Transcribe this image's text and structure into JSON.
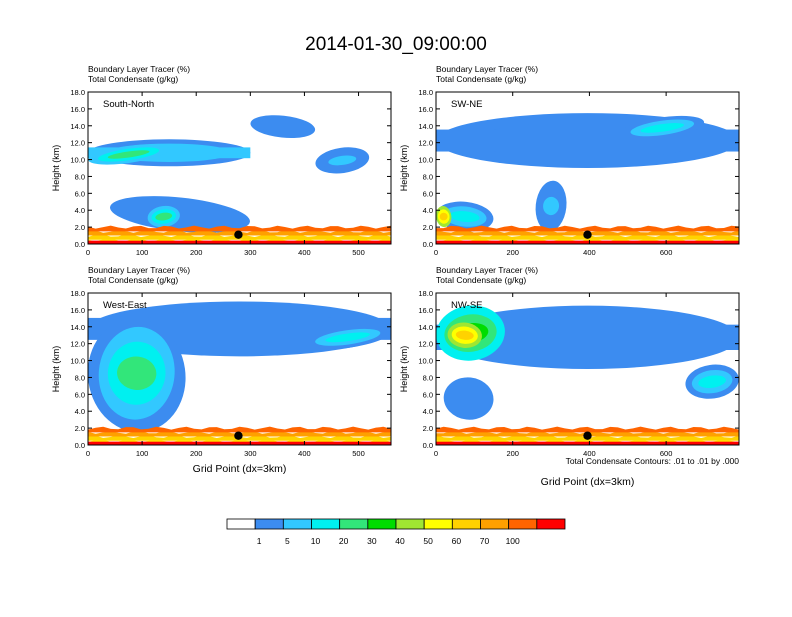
{
  "figure": {
    "title": "2014-01-30_09:00:00",
    "contour_note": "Total Condensate Contours: .01 to .01 by .000"
  },
  "colorbar": {
    "labels": [
      "1",
      "5",
      "10",
      "20",
      "30",
      "40",
      "50",
      "60",
      "70",
      "100"
    ],
    "colors": [
      "#ffffff",
      "#3c8cf0",
      "#32c8ff",
      "#00f0f0",
      "#32e67a",
      "#00dc00",
      "#a0e632",
      "#ffff00",
      "#ffd200",
      "#ffa000",
      "#ff6400",
      "#ff0000"
    ]
  },
  "chart_data": [
    {
      "type": "heatmap",
      "panel": "South-North",
      "header_line1": "Boundary Layer Tracer   (%)",
      "header_line2": "Total Condensate   (g/kg)",
      "xlabel": "",
      "ylabel": "Height (km)",
      "xlim": [
        0,
        560
      ],
      "ylim": [
        0,
        18
      ],
      "xticks": [
        "0",
        "100",
        "200",
        "300",
        "400",
        "500"
      ],
      "yticks": [
        "0.0",
        "2.0",
        "4.0",
        "6.0",
        "8.0",
        "10.0",
        "12.0",
        "14.0",
        "16.0",
        "18.0"
      ],
      "marker": [
        278,
        1.1
      ],
      "features": [
        {
          "x": [
            0,
            300
          ],
          "y": [
            9.2,
            12.4
          ],
          "level": 2,
          "shape": "band"
        },
        {
          "x": [
            0,
            150
          ],
          "y": [
            9.6,
            11.6
          ],
          "level": 4
        },
        {
          "x": [
            300,
            420
          ],
          "y": [
            12.6,
            15.2
          ],
          "level": 1
        },
        {
          "x": [
            420,
            520
          ],
          "y": [
            8.4,
            11.4
          ],
          "level": 2
        },
        {
          "x": [
            40,
            300
          ],
          "y": [
            1.5,
            5.5
          ],
          "level": 1
        },
        {
          "x": [
            110,
            170
          ],
          "y": [
            2.0,
            4.5
          ],
          "level": 4
        },
        {
          "x": [
            0,
            560
          ],
          "y": [
            0,
            2.0
          ],
          "level": 7,
          "shape": "surface"
        }
      ]
    },
    {
      "type": "heatmap",
      "panel": "SW-NE",
      "header_line1": "Boundary Layer Tracer   (%)",
      "header_line2": "Total Condensate   (g/kg)",
      "xlabel": "",
      "ylabel": "Height (km)",
      "xlim": [
        0,
        790
      ],
      "ylim": [
        0,
        18
      ],
      "xticks": [
        "0",
        "200",
        "400",
        "600"
      ],
      "yticks": [
        "0.0",
        "2.0",
        "4.0",
        "6.0",
        "8.0",
        "10.0",
        "12.0",
        "14.0",
        "16.0",
        "18.0"
      ],
      "marker": [
        395,
        1.1
      ],
      "features": [
        {
          "x": [
            0,
            790
          ],
          "y": [
            9.0,
            15.5
          ],
          "level": 1,
          "shape": "band"
        },
        {
          "x": [
            480,
            700
          ],
          "y": [
            12.5,
            15.0
          ],
          "level": 3
        },
        {
          "x": [
            0,
            150
          ],
          "y": [
            1.5,
            5.0
          ],
          "level": 3
        },
        {
          "x": [
            0,
            40
          ],
          "y": [
            2.0,
            4.5
          ],
          "level": 8
        },
        {
          "x": [
            260,
            340
          ],
          "y": [
            1.5,
            7.5
          ],
          "level": 2
        },
        {
          "x": [
            0,
            790
          ],
          "y": [
            0,
            2.0
          ],
          "level": 7,
          "shape": "surface"
        }
      ]
    },
    {
      "type": "heatmap",
      "panel": "West-East",
      "header_line1": "Boundary Layer Tracer   (%)",
      "header_line2": "Total Condensate   (g/kg)",
      "xlabel": "Grid Point (dx=3km)",
      "ylabel": "Height (km)",
      "xlim": [
        0,
        560
      ],
      "ylim": [
        0,
        18
      ],
      "xticks": [
        "0",
        "100",
        "200",
        "300",
        "400",
        "500"
      ],
      "yticks": [
        "0.0",
        "2.0",
        "4.0",
        "6.0",
        "8.0",
        "10.0",
        "12.0",
        "14.0",
        "16.0",
        "18.0"
      ],
      "marker": [
        278,
        1.1
      ],
      "features": [
        {
          "x": [
            0,
            560
          ],
          "y": [
            10.5,
            17.0
          ],
          "level": 1,
          "shape": "band"
        },
        {
          "x": [
            0,
            180
          ],
          "y": [
            1.5,
            15.0
          ],
          "level": 3
        },
        {
          "x": [
            20,
            160
          ],
          "y": [
            3.0,
            14.0
          ],
          "level": 4
        },
        {
          "x": [
            400,
            560
          ],
          "y": [
            11.5,
            14.0
          ],
          "level": 3
        },
        {
          "x": [
            0,
            560
          ],
          "y": [
            0,
            2.0
          ],
          "level": 7,
          "shape": "surface"
        }
      ]
    },
    {
      "type": "heatmap",
      "panel": "NW-SE",
      "header_line1": "Boundary Layer Tracer   (%)",
      "header_line2": "Total Condensate   (g/kg)",
      "xlabel": "Grid Point (dx=3km)",
      "ylabel": "Height (km)",
      "xlim": [
        0,
        790
      ],
      "ylim": [
        0,
        18
      ],
      "xticks": [
        "0",
        "200",
        "400",
        "600"
      ],
      "yticks": [
        "0.0",
        "2.0",
        "4.0",
        "6.0",
        "8.0",
        "10.0",
        "12.0",
        "14.0",
        "16.0",
        "18.0"
      ],
      "marker": [
        395,
        1.1
      ],
      "features": [
        {
          "x": [
            0,
            790
          ],
          "y": [
            9.0,
            16.5
          ],
          "level": 1,
          "shape": "band"
        },
        {
          "x": [
            0,
            180
          ],
          "y": [
            10.0,
            16.5
          ],
          "level": 5
        },
        {
          "x": [
            30,
            120
          ],
          "y": [
            11.5,
            14.5
          ],
          "level": 8
        },
        {
          "x": [
            650,
            790
          ],
          "y": [
            5.5,
            9.5
          ],
          "level": 3
        },
        {
          "x": [
            20,
            150
          ],
          "y": [
            3.0,
            8.0
          ],
          "level": 1
        },
        {
          "x": [
            0,
            790
          ],
          "y": [
            0,
            2.0
          ],
          "level": 7,
          "shape": "surface"
        }
      ]
    }
  ]
}
